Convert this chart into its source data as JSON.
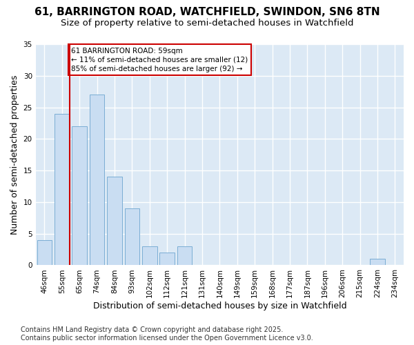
{
  "title_line1": "61, BARRINGTON ROAD, WATCHFIELD, SWINDON, SN6 8TN",
  "title_line2": "Size of property relative to semi-detached houses in Watchfield",
  "xlabel": "Distribution of semi-detached houses by size in Watchfield",
  "ylabel": "Number of semi-detached properties",
  "categories": [
    "46sqm",
    "55sqm",
    "65sqm",
    "74sqm",
    "84sqm",
    "93sqm",
    "102sqm",
    "112sqm",
    "121sqm",
    "131sqm",
    "140sqm",
    "149sqm",
    "159sqm",
    "168sqm",
    "177sqm",
    "187sqm",
    "196sqm",
    "206sqm",
    "215sqm",
    "224sqm",
    "234sqm"
  ],
  "values": [
    4,
    24,
    22,
    27,
    14,
    9,
    3,
    2,
    3,
    0,
    0,
    0,
    0,
    0,
    0,
    0,
    0,
    0,
    0,
    1,
    0
  ],
  "bar_color": "#c9ddf2",
  "bar_edge_color": "#7aadd4",
  "vline_x_index": 1,
  "vline_color": "#cc0000",
  "annotation_title": "61 BARRINGTON ROAD: 59sqm",
  "annotation_line1": "← 11% of semi-detached houses are smaller (12)",
  "annotation_line2": "85% of semi-detached houses are larger (92) →",
  "annotation_box_color": "#ffffff",
  "annotation_box_edge": "#cc0000",
  "ylim": [
    0,
    35
  ],
  "yticks": [
    0,
    5,
    10,
    15,
    20,
    25,
    30,
    35
  ],
  "footnote": "Contains HM Land Registry data © Crown copyright and database right 2025.\nContains public sector information licensed under the Open Government Licence v3.0.",
  "fig_bg_color": "#ffffff",
  "plot_bg_color": "#dce9f5",
  "title_fontsize": 11,
  "subtitle_fontsize": 9.5,
  "axis_label_fontsize": 9,
  "tick_fontsize": 7.5,
  "footnote_fontsize": 7
}
